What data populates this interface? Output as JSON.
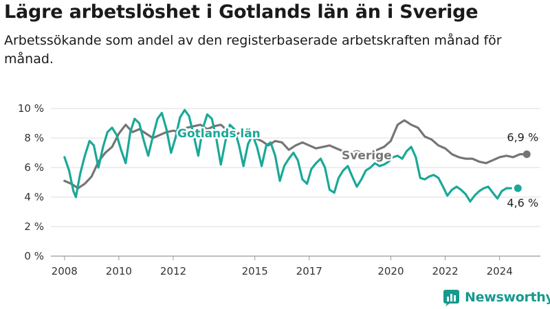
{
  "title": "Lägre arbetslöshet i Gotlands län än i Sverige",
  "subtitle": "Arbetssökande som andel av den registerbaserade arbetskraften månad för månad.",
  "brand": {
    "name": "Newsworthy"
  },
  "colors": {
    "gotland": "#1aa898",
    "sverige": "#757575",
    "brand": "#159a8e",
    "grid": "#dddddd",
    "axis": "#999999"
  },
  "chart_data": {
    "type": "line",
    "xlabel": "",
    "ylabel": "",
    "xlim": [
      2007.5,
      2025.5
    ],
    "ylim": [
      0,
      10
    ],
    "yticks": [
      0,
      2,
      4,
      6,
      8,
      10
    ],
    "ytick_labels": [
      "0 %",
      "2 %",
      "4 %",
      "6 %",
      "8 %",
      "10 %"
    ],
    "xticks": [
      2008,
      2010,
      2012,
      2015,
      2017,
      2020,
      2022,
      2024
    ],
    "xtick_labels": [
      "2008",
      "2010",
      "2012",
      "2015",
      "2017",
      "2020",
      "2022",
      "2024"
    ],
    "grid": "horizontal",
    "series": [
      {
        "name": "Sverige",
        "color": "#757575",
        "label_text": "Sverige",
        "end_label": "6,9 %",
        "points": [
          [
            2008.0,
            5.1
          ],
          [
            2008.25,
            4.9
          ],
          [
            2008.5,
            4.6
          ],
          [
            2008.75,
            4.9
          ],
          [
            2009.0,
            5.4
          ],
          [
            2009.25,
            6.4
          ],
          [
            2009.5,
            7.0
          ],
          [
            2009.75,
            7.4
          ],
          [
            2010.0,
            8.3
          ],
          [
            2010.25,
            8.9
          ],
          [
            2010.5,
            8.4
          ],
          [
            2010.75,
            8.6
          ],
          [
            2011.0,
            8.3
          ],
          [
            2011.25,
            8.0
          ],
          [
            2011.5,
            8.2
          ],
          [
            2011.75,
            8.4
          ],
          [
            2012.0,
            8.5
          ],
          [
            2012.25,
            8.4
          ],
          [
            2012.5,
            8.7
          ],
          [
            2012.75,
            8.8
          ],
          [
            2013.0,
            8.9
          ],
          [
            2013.25,
            8.6
          ],
          [
            2013.5,
            8.8
          ],
          [
            2013.75,
            8.9
          ],
          [
            2014.0,
            8.5
          ],
          [
            2014.25,
            8.2
          ],
          [
            2014.5,
            8.4
          ],
          [
            2014.75,
            8.3
          ],
          [
            2015.0,
            8.0
          ],
          [
            2015.25,
            7.8
          ],
          [
            2015.5,
            7.5
          ],
          [
            2015.75,
            7.8
          ],
          [
            2016.0,
            7.7
          ],
          [
            2016.25,
            7.2
          ],
          [
            2016.5,
            7.5
          ],
          [
            2016.75,
            7.7
          ],
          [
            2017.0,
            7.5
          ],
          [
            2017.25,
            7.3
          ],
          [
            2017.5,
            7.4
          ],
          [
            2017.75,
            7.5
          ],
          [
            2018.0,
            7.3
          ],
          [
            2018.25,
            7.1
          ],
          [
            2018.5,
            7.0
          ],
          [
            2018.75,
            7.1
          ],
          [
            2019.0,
            7.0
          ],
          [
            2019.25,
            7.0
          ],
          [
            2019.5,
            7.2
          ],
          [
            2019.75,
            7.4
          ],
          [
            2020.0,
            7.8
          ],
          [
            2020.25,
            8.9
          ],
          [
            2020.5,
            9.2
          ],
          [
            2020.75,
            8.9
          ],
          [
            2021.0,
            8.7
          ],
          [
            2021.25,
            8.1
          ],
          [
            2021.5,
            7.9
          ],
          [
            2021.75,
            7.5
          ],
          [
            2022.0,
            7.3
          ],
          [
            2022.25,
            6.9
          ],
          [
            2022.5,
            6.7
          ],
          [
            2022.75,
            6.6
          ],
          [
            2023.0,
            6.6
          ],
          [
            2023.25,
            6.4
          ],
          [
            2023.5,
            6.3
          ],
          [
            2023.75,
            6.5
          ],
          [
            2024.0,
            6.7
          ],
          [
            2024.25,
            6.8
          ],
          [
            2024.5,
            6.7
          ],
          [
            2024.75,
            6.9
          ],
          [
            2025.0,
            6.9
          ]
        ]
      },
      {
        "name": "Gotlands län",
        "color": "#1aa898",
        "label_text": "Gotlands län",
        "end_label": "4,6 %",
        "points": [
          [
            2008.0,
            6.7
          ],
          [
            2008.17,
            5.8
          ],
          [
            2008.33,
            4.4
          ],
          [
            2008.42,
            4.0
          ],
          [
            2008.58,
            5.6
          ],
          [
            2008.75,
            6.8
          ],
          [
            2008.92,
            7.8
          ],
          [
            2009.08,
            7.5
          ],
          [
            2009.25,
            6.0
          ],
          [
            2009.42,
            7.4
          ],
          [
            2009.58,
            8.4
          ],
          [
            2009.75,
            8.7
          ],
          [
            2009.92,
            8.2
          ],
          [
            2010.08,
            7.2
          ],
          [
            2010.25,
            6.3
          ],
          [
            2010.42,
            8.4
          ],
          [
            2010.58,
            9.3
          ],
          [
            2010.75,
            9.0
          ],
          [
            2010.92,
            7.8
          ],
          [
            2011.08,
            6.8
          ],
          [
            2011.25,
            8.1
          ],
          [
            2011.42,
            9.3
          ],
          [
            2011.58,
            9.7
          ],
          [
            2011.75,
            8.6
          ],
          [
            2011.92,
            7.0
          ],
          [
            2012.08,
            8.0
          ],
          [
            2012.25,
            9.4
          ],
          [
            2012.42,
            9.9
          ],
          [
            2012.58,
            9.5
          ],
          [
            2012.75,
            8.2
          ],
          [
            2012.92,
            6.8
          ],
          [
            2013.08,
            8.6
          ],
          [
            2013.25,
            9.6
          ],
          [
            2013.42,
            9.3
          ],
          [
            2013.58,
            8.0
          ],
          [
            2013.75,
            6.2
          ],
          [
            2013.92,
            7.8
          ],
          [
            2014.08,
            8.9
          ],
          [
            2014.25,
            8.6
          ],
          [
            2014.42,
            7.5
          ],
          [
            2014.58,
            6.1
          ],
          [
            2014.75,
            7.6
          ],
          [
            2014.92,
            8.2
          ],
          [
            2015.08,
            7.4
          ],
          [
            2015.25,
            6.1
          ],
          [
            2015.42,
            7.5
          ],
          [
            2015.58,
            7.7
          ],
          [
            2015.75,
            6.8
          ],
          [
            2015.92,
            5.1
          ],
          [
            2016.08,
            6.1
          ],
          [
            2016.25,
            6.6
          ],
          [
            2016.42,
            7.0
          ],
          [
            2016.58,
            6.5
          ],
          [
            2016.75,
            5.2
          ],
          [
            2016.92,
            4.9
          ],
          [
            2017.08,
            5.9
          ],
          [
            2017.25,
            6.3
          ],
          [
            2017.42,
            6.6
          ],
          [
            2017.58,
            6.0
          ],
          [
            2017.75,
            4.5
          ],
          [
            2017.92,
            4.3
          ],
          [
            2018.08,
            5.3
          ],
          [
            2018.25,
            5.8
          ],
          [
            2018.42,
            6.1
          ],
          [
            2018.58,
            5.4
          ],
          [
            2018.75,
            4.7
          ],
          [
            2018.92,
            5.2
          ],
          [
            2019.08,
            5.8
          ],
          [
            2019.25,
            6.0
          ],
          [
            2019.42,
            6.3
          ],
          [
            2019.58,
            6.1
          ],
          [
            2019.75,
            6.2
          ],
          [
            2019.92,
            6.4
          ],
          [
            2020.08,
            6.7
          ],
          [
            2020.25,
            6.8
          ],
          [
            2020.42,
            6.6
          ],
          [
            2020.58,
            7.1
          ],
          [
            2020.75,
            7.4
          ],
          [
            2020.92,
            6.7
          ],
          [
            2021.08,
            5.3
          ],
          [
            2021.25,
            5.2
          ],
          [
            2021.42,
            5.4
          ],
          [
            2021.58,
            5.5
          ],
          [
            2021.75,
            5.3
          ],
          [
            2021.92,
            4.7
          ],
          [
            2022.08,
            4.1
          ],
          [
            2022.25,
            4.5
          ],
          [
            2022.42,
            4.7
          ],
          [
            2022.58,
            4.5
          ],
          [
            2022.75,
            4.2
          ],
          [
            2022.92,
            3.7
          ],
          [
            2023.08,
            4.1
          ],
          [
            2023.25,
            4.4
          ],
          [
            2023.42,
            4.6
          ],
          [
            2023.58,
            4.7
          ],
          [
            2023.75,
            4.3
          ],
          [
            2023.92,
            3.9
          ],
          [
            2024.08,
            4.4
          ],
          [
            2024.25,
            4.6
          ],
          [
            2024.42,
            4.6
          ]
        ]
      }
    ]
  }
}
